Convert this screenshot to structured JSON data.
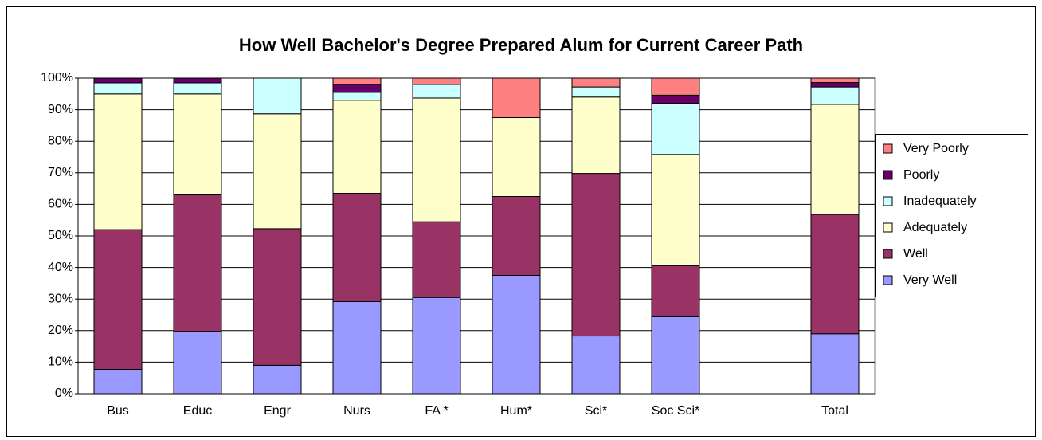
{
  "chart_data": {
    "type": "bar",
    "stacked": true,
    "title": "How Well Bachelor's Degree Prepared Alum for Current Career Path",
    "categories": [
      "Bus",
      "Educ",
      "Engr",
      "Nurs",
      "FA *",
      "Hum*",
      "Sci*",
      "Soc Sci*",
      null,
      "Total"
    ],
    "series": [
      {
        "name": "Very Well",
        "color": "#9999ff",
        "values": [
          7.7,
          19.8,
          9,
          29.2,
          30.5,
          37.5,
          18.3,
          24.4,
          null,
          19
        ]
      },
      {
        "name": "Well",
        "color": "#993366",
        "values": [
          44.3,
          43.2,
          43.3,
          34.3,
          24,
          25,
          51.5,
          16.2,
          null,
          37.8
        ]
      },
      {
        "name": "Adequately",
        "color": "#ffffcc",
        "values": [
          43,
          32,
          36.4,
          29.5,
          39.2,
          25,
          24.2,
          35.2,
          null,
          34.9
        ]
      },
      {
        "name": "Inadequately",
        "color": "#ccffff",
        "values": [
          3.5,
          3.5,
          11.3,
          2.5,
          4.3,
          0,
          3.2,
          16.2,
          null,
          5.5
        ]
      },
      {
        "name": "Poorly",
        "color": "#660066",
        "values": [
          1.5,
          1.5,
          0,
          2.5,
          0,
          0,
          0,
          2.6,
          null,
          1.4
        ]
      },
      {
        "name": "Very Poorly",
        "color": "#ff8080",
        "values": [
          0,
          0,
          0,
          2,
          2,
          12.5,
          2.8,
          5.4,
          null,
          1.4
        ]
      }
    ],
    "ylim": [
      0,
      100
    ],
    "yticks": [
      {
        "value": 0,
        "label": "0%"
      },
      {
        "value": 10,
        "label": "10%"
      },
      {
        "value": 20,
        "label": "20%"
      },
      {
        "value": 30,
        "label": "30%"
      },
      {
        "value": 40,
        "label": "40%"
      },
      {
        "value": 50,
        "label": "50%"
      },
      {
        "value": 60,
        "label": "60%"
      },
      {
        "value": 70,
        "label": "70%"
      },
      {
        "value": 80,
        "label": "80%"
      },
      {
        "value": 90,
        "label": "90%"
      },
      {
        "value": 100,
        "label": "100%"
      }
    ],
    "grid": true,
    "legend": "right"
  }
}
